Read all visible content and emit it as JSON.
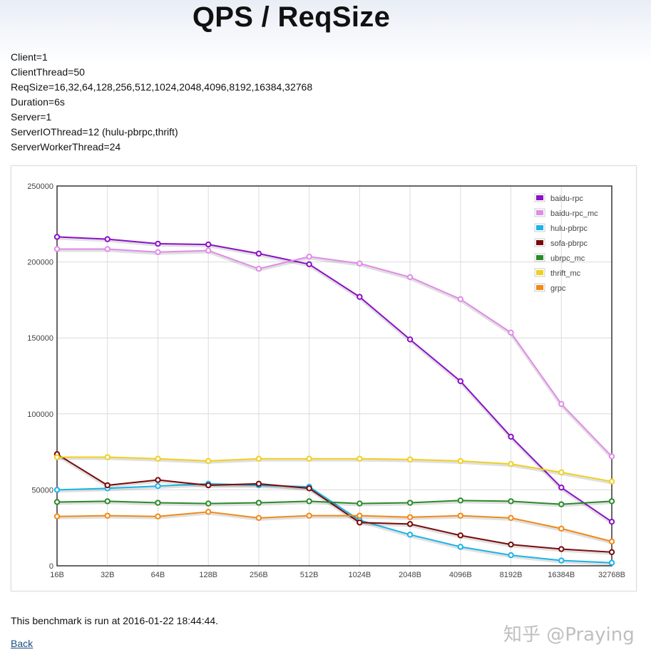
{
  "page": {
    "title": "QPS / ReqSize",
    "params": [
      "Client=1",
      "ClientThread=50",
      "ReqSize=16,32,64,128,256,512,1024,2048,4096,8192,16384,32768",
      "Duration=6s",
      "Server=1",
      "ServerIOThread=12 (hulu-pbrpc,thrift)",
      "ServerWorkerThread=24"
    ],
    "footer": "This benchmark is run at 2016-01-22 18:44:44.",
    "back_label": "Back",
    "watermark": "知乎 @Praying"
  },
  "chart_data": {
    "type": "line",
    "title": "QPS / ReqSize",
    "xlabel": "",
    "ylabel": "",
    "ylim": [
      0,
      250000
    ],
    "yticks": [
      "0",
      "50000",
      "100000",
      "150000",
      "200000",
      "250000"
    ],
    "grid": true,
    "legend_position": "top-right",
    "categories": [
      "16B",
      "32B",
      "64B",
      "128B",
      "256B",
      "512B",
      "1024B",
      "2048B",
      "4096B",
      "8192B",
      "16384B",
      "32768B"
    ],
    "series": [
      {
        "name": "baidu-rpc",
        "color": "#8b10c8",
        "values": [
          216500,
          215000,
          212000,
          211500,
          205500,
          198500,
          177000,
          149000,
          121500,
          85000,
          51500,
          29000
        ]
      },
      {
        "name": "baidu-rpc_mc",
        "color": "#e08ce8",
        "values": [
          208500,
          208500,
          206500,
          207500,
          195500,
          203500,
          199000,
          190000,
          175500,
          153500,
          106500,
          72000
        ]
      },
      {
        "name": "hulu-pbrpc",
        "color": "#1ab4e8",
        "values": [
          50000,
          51000,
          52500,
          54000,
          53000,
          52000,
          30000,
          20500,
          12500,
          7000,
          3500,
          2000
        ]
      },
      {
        "name": "sofa-pbrpc",
        "color": "#7a0a0a",
        "values": [
          73500,
          53000,
          56500,
          53000,
          54000,
          51000,
          28500,
          27500,
          20000,
          14000,
          11000,
          9000
        ]
      },
      {
        "name": "ubrpc_mc",
        "color": "#2a8a2a",
        "values": [
          42000,
          42500,
          41500,
          41000,
          41500,
          42500,
          41000,
          41500,
          43000,
          42500,
          40500,
          42500
        ]
      },
      {
        "name": "thrift_mc",
        "color": "#f0d020",
        "values": [
          71500,
          71500,
          70500,
          69000,
          70500,
          70500,
          70500,
          70000,
          69000,
          67000,
          61500,
          55500
        ]
      },
      {
        "name": "grpc",
        "color": "#f08a18",
        "values": [
          32500,
          33000,
          32500,
          35500,
          31500,
          33000,
          33000,
          32000,
          33000,
          31500,
          24500,
          16000
        ]
      }
    ]
  }
}
